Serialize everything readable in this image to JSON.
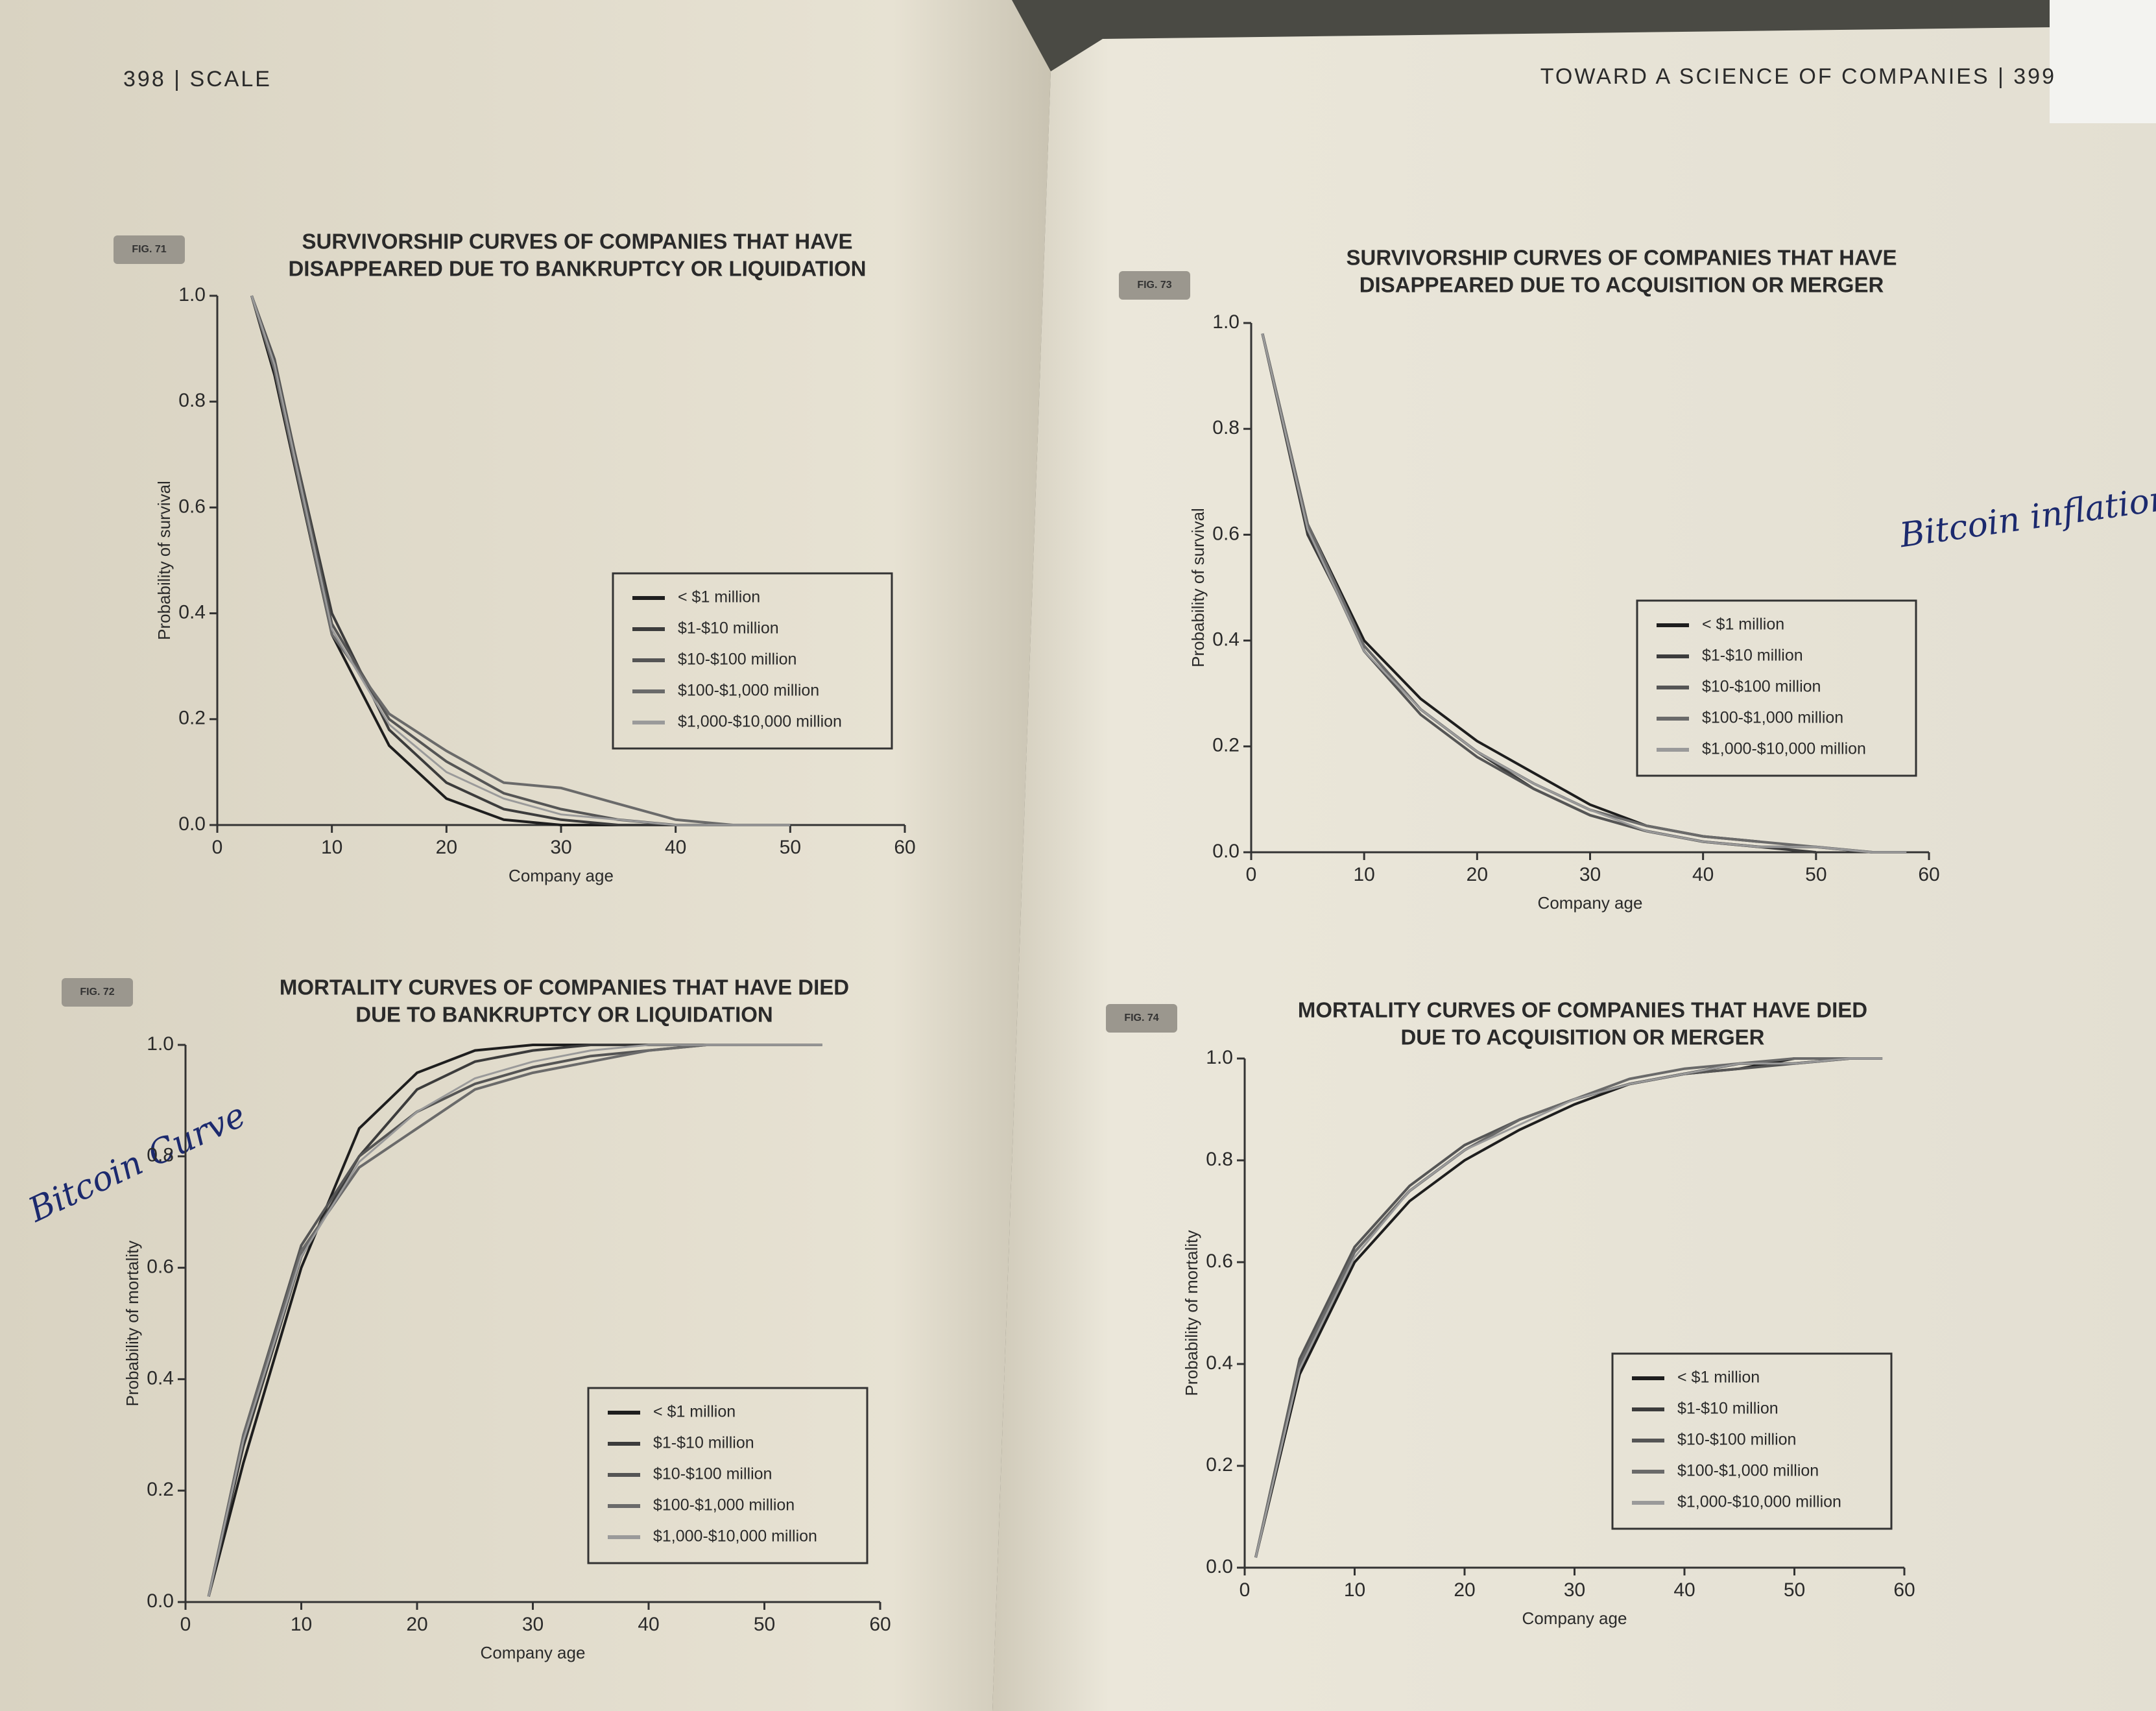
{
  "page": {
    "left_header": "398 | SCALE",
    "right_header": "TOWARD A SCIENCE OF COMPANIES | 399",
    "annotations": [
      "Bitcoin Curve",
      "Bitcoin inflation"
    ]
  },
  "chart_data": [
    {
      "type": "line",
      "figure_label": "FIG. 71",
      "title": [
        "SURVIVORSHIP CURVES OF COMPANIES THAT HAVE",
        "DISAPPEARED DUE TO BANKRUPTCY OR LIQUIDATION"
      ],
      "x_label": "Company age",
      "y_label": "Probability of survival",
      "xlim": [
        0,
        60
      ],
      "ylim": [
        0,
        1
      ],
      "xticks": [
        0,
        10,
        20,
        30,
        40,
        50,
        60
      ],
      "yticks": [
        {
          "value": 0,
          "label": "0.0"
        },
        0.2,
        0.4,
        0.6,
        0.8,
        {
          "value": 1,
          "label": "1.0"
        }
      ],
      "legend": "center right",
      "x": [
        3,
        5,
        10,
        15,
        20,
        25,
        30,
        35,
        40,
        45,
        50
      ],
      "series": [
        {
          "name": "< $1 million",
          "color": "#1e1e1e",
          "values": [
            1.0,
            0.85,
            0.36,
            0.15,
            0.05,
            0.01,
            0.0,
            0.0,
            0.0,
            null,
            null
          ]
        },
        {
          "name": "$1-$10 million",
          "color": "#3c3c3c",
          "values": [
            1.0,
            0.87,
            0.4,
            0.18,
            0.08,
            0.03,
            0.01,
            0.0,
            0.0,
            0.0,
            null
          ]
        },
        {
          "name": "$10-$100 million",
          "color": "#555555",
          "values": [
            1.0,
            0.88,
            0.38,
            0.2,
            0.12,
            0.06,
            0.03,
            0.01,
            0.0,
            0.0,
            0.0
          ]
        },
        {
          "name": "$100-$1,000 million",
          "color": "#6a6a6a",
          "values": [
            1.0,
            0.86,
            0.36,
            0.21,
            0.14,
            0.08,
            0.07,
            0.04,
            0.01,
            0.0,
            0.0
          ]
        },
        {
          "name": "$1,000-$10,000 million",
          "color": "#9a9a9a",
          "values": [
            1.0,
            0.87,
            0.37,
            0.19,
            0.1,
            0.05,
            0.02,
            0.01,
            0.0,
            0.0,
            0.0
          ]
        }
      ]
    },
    {
      "type": "line",
      "figure_label": "FIG. 73",
      "title": [
        "SURVIVORSHIP CURVES OF COMPANIES THAT HAVE",
        "DISAPPEARED DUE TO ACQUISITION OR MERGER"
      ],
      "x_label": "Company age",
      "y_label": "Probability of survival",
      "xlim": [
        0,
        60
      ],
      "ylim": [
        0,
        1
      ],
      "xticks": [
        0,
        10,
        20,
        30,
        40,
        50,
        60
      ],
      "yticks": [
        {
          "value": 0,
          "label": "0.0"
        },
        0.2,
        0.4,
        0.6,
        0.8,
        {
          "value": 1,
          "label": "1.0"
        }
      ],
      "legend": "center right",
      "x": [
        1,
        5,
        10,
        15,
        20,
        25,
        30,
        35,
        40,
        45,
        50,
        55,
        58
      ],
      "series": [
        {
          "name": "< $1 million",
          "color": "#1e1e1e",
          "values": [
            0.98,
            0.62,
            0.4,
            0.29,
            0.21,
            0.15,
            0.09,
            0.05,
            0.03,
            0.02,
            null,
            null,
            null
          ]
        },
        {
          "name": "$1-$10 million",
          "color": "#3c3c3c",
          "values": [
            0.98,
            0.6,
            0.39,
            0.27,
            0.19,
            0.12,
            0.07,
            0.04,
            0.02,
            0.01,
            0.0,
            null,
            null
          ]
        },
        {
          "name": "$10-$100 million",
          "color": "#555555",
          "values": [
            0.98,
            0.61,
            0.38,
            0.26,
            0.18,
            0.12,
            0.07,
            0.04,
            0.02,
            0.01,
            0.01,
            0.0,
            null
          ]
        },
        {
          "name": "$100-$1,000 million",
          "color": "#6a6a6a",
          "values": [
            0.98,
            0.62,
            0.39,
            0.27,
            0.19,
            0.13,
            0.08,
            0.05,
            0.03,
            0.02,
            0.01,
            0.0,
            0.0
          ]
        },
        {
          "name": "$1,000-$10,000 million",
          "color": "#9a9a9a",
          "values": [
            0.98,
            0.61,
            0.38,
            0.27,
            0.19,
            0.13,
            0.08,
            0.04,
            0.02,
            0.01,
            0.01,
            0.0,
            0.0
          ]
        }
      ]
    },
    {
      "type": "line",
      "figure_label": "FIG. 72",
      "title": [
        "MORTALITY CURVES OF COMPANIES THAT HAVE DIED",
        "DUE TO BANKRUPTCY OR LIQUIDATION"
      ],
      "x_label": "Company age",
      "y_label": "Probability of mortality",
      "xlim": [
        0,
        60
      ],
      "ylim": [
        0,
        1
      ],
      "xticks": [
        0,
        10,
        20,
        30,
        40,
        50,
        60
      ],
      "yticks": [
        {
          "value": 0,
          "label": "0.0"
        },
        0.2,
        0.4,
        0.6,
        0.8,
        {
          "value": 1,
          "label": "1.0"
        }
      ],
      "legend": "lower right",
      "x": [
        2,
        5,
        10,
        15,
        20,
        25,
        30,
        35,
        40,
        45,
        50,
        55
      ],
      "series": [
        {
          "name": "< $1 million",
          "color": "#1e1e1e",
          "values": [
            0.01,
            0.25,
            0.6,
            0.85,
            0.95,
            0.99,
            1.0,
            1.0,
            1.0,
            null,
            null,
            null
          ]
        },
        {
          "name": "$1-$10 million",
          "color": "#3c3c3c",
          "values": [
            0.01,
            0.28,
            0.62,
            0.8,
            0.92,
            0.97,
            0.99,
            1.0,
            1.0,
            1.0,
            null,
            null
          ]
        },
        {
          "name": "$10-$100 million",
          "color": "#555555",
          "values": [
            0.01,
            0.3,
            0.64,
            0.8,
            0.88,
            0.93,
            0.96,
            0.98,
            0.99,
            1.0,
            1.0,
            null
          ]
        },
        {
          "name": "$100-$1,000 million",
          "color": "#6a6a6a",
          "values": [
            0.01,
            0.3,
            0.63,
            0.78,
            0.85,
            0.92,
            0.95,
            0.97,
            0.99,
            1.0,
            1.0,
            1.0
          ]
        },
        {
          "name": "$1,000-$10,000 million",
          "color": "#9a9a9a",
          "values": [
            0.01,
            0.29,
            0.62,
            0.79,
            0.88,
            0.94,
            0.97,
            0.99,
            1.0,
            1.0,
            1.0,
            1.0
          ]
        }
      ]
    },
    {
      "type": "line",
      "figure_label": "FIG. 74",
      "title": [
        "MORTALITY CURVES OF COMPANIES THAT HAVE DIED",
        "DUE TO ACQUISITION OR MERGER"
      ],
      "x_label": "Company age",
      "y_label": "Probability of mortality",
      "xlim": [
        0,
        60
      ],
      "ylim": [
        0,
        1
      ],
      "xticks": [
        0,
        10,
        20,
        30,
        40,
        50,
        60
      ],
      "yticks": [
        {
          "value": 0,
          "label": "0.0"
        },
        0.2,
        0.4,
        0.6,
        0.8,
        {
          "value": 1,
          "label": "1.0"
        }
      ],
      "legend": "lower right",
      "x": [
        1,
        5,
        10,
        15,
        20,
        25,
        30,
        35,
        40,
        45,
        50,
        55,
        58
      ],
      "series": [
        {
          "name": "< $1 million",
          "color": "#1e1e1e",
          "values": [
            0.02,
            0.38,
            0.6,
            0.72,
            0.8,
            0.86,
            0.91,
            0.95,
            0.97,
            0.98,
            1.0,
            null,
            null
          ]
        },
        {
          "name": "$1-$10 million",
          "color": "#3c3c3c",
          "values": [
            0.02,
            0.4,
            0.62,
            0.74,
            0.82,
            0.88,
            0.92,
            0.95,
            0.97,
            0.99,
            0.99,
            1.0,
            null
          ]
        },
        {
          "name": "$10-$100 million",
          "color": "#555555",
          "values": [
            0.02,
            0.41,
            0.63,
            0.75,
            0.83,
            0.88,
            0.92,
            0.95,
            0.97,
            0.98,
            0.99,
            1.0,
            1.0
          ]
        },
        {
          "name": "$100-$1,000 million",
          "color": "#6a6a6a",
          "values": [
            0.02,
            0.4,
            0.62,
            0.74,
            0.82,
            0.88,
            0.92,
            0.96,
            0.98,
            0.99,
            1.0,
            1.0,
            1.0
          ]
        },
        {
          "name": "$1,000-$10,000 million",
          "color": "#9a9a9a",
          "values": [
            0.02,
            0.39,
            0.61,
            0.74,
            0.82,
            0.87,
            0.92,
            0.95,
            0.97,
            0.99,
            0.99,
            1.0,
            1.0
          ]
        }
      ]
    }
  ]
}
